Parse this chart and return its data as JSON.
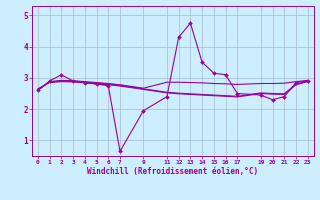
{
  "xlabel": "Windchill (Refroidissement éolien,°C)",
  "background_color": "#cceeff",
  "line_color": "#990099",
  "grid_color": "#aabbcc",
  "x_ticks": [
    0,
    1,
    2,
    3,
    4,
    5,
    6,
    7,
    9,
    11,
    12,
    13,
    14,
    15,
    16,
    17,
    19,
    20,
    21,
    22,
    23
  ],
  "ylim": [
    0.5,
    5.3
  ],
  "xlim": [
    -0.5,
    23.5
  ],
  "yticks": [
    1,
    2,
    3,
    4,
    5
  ],
  "series_main_x": [
    0,
    1,
    2,
    3,
    4,
    5,
    6,
    7,
    9,
    11,
    12,
    13,
    14,
    15,
    16,
    17,
    19,
    20,
    21,
    22,
    23
  ],
  "series_main_y": [
    2.6,
    2.9,
    3.1,
    2.9,
    2.85,
    2.8,
    2.75,
    0.65,
    1.95,
    2.4,
    4.3,
    4.75,
    3.5,
    3.15,
    3.1,
    2.5,
    2.45,
    2.3,
    2.4,
    2.85,
    2.9
  ],
  "series2_x": [
    0,
    1,
    2,
    3,
    4,
    5,
    6,
    7,
    9,
    11,
    12,
    13,
    14,
    15,
    16,
    17,
    19,
    20,
    21,
    22,
    23
  ],
  "series2_y": [
    2.65,
    2.85,
    2.88,
    2.87,
    2.84,
    2.81,
    2.78,
    2.74,
    2.63,
    2.52,
    2.49,
    2.47,
    2.45,
    2.43,
    2.41,
    2.39,
    2.5,
    2.48,
    2.47,
    2.78,
    2.88
  ],
  "series3_x": [
    0,
    1,
    2,
    3,
    4,
    5,
    6,
    7,
    9,
    11,
    12,
    13,
    14,
    15,
    16,
    17,
    19,
    20,
    21,
    22,
    23
  ],
  "series3_y": [
    2.62,
    2.87,
    2.9,
    2.89,
    2.86,
    2.83,
    2.8,
    2.76,
    2.65,
    2.54,
    2.51,
    2.49,
    2.47,
    2.45,
    2.43,
    2.41,
    2.52,
    2.5,
    2.49,
    2.8,
    2.9
  ],
  "series4_x": [
    0,
    1,
    2,
    3,
    4,
    5,
    6,
    7,
    9,
    11,
    12,
    13,
    14,
    15,
    16,
    17,
    19,
    20,
    21,
    22,
    23
  ],
  "series4_y": [
    2.6,
    2.88,
    2.92,
    2.91,
    2.88,
    2.85,
    2.82,
    2.78,
    2.67,
    2.86,
    2.86,
    2.85,
    2.84,
    2.82,
    2.81,
    2.79,
    2.82,
    2.82,
    2.83,
    2.88,
    2.92
  ]
}
